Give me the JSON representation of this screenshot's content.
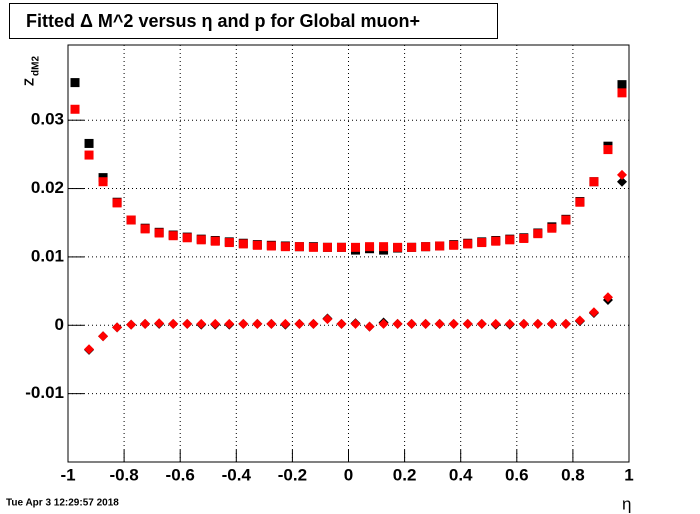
{
  "chart_data": {
    "type": "scatter",
    "title": "Fitted Δ M^2 versus η and p for Global muon+",
    "x_label": "η",
    "y_label": "Z",
    "y_label_sub": "dM2",
    "footer": "Tue Apr  3 12:29:57 2018",
    "x": [
      -0.975,
      -0.925,
      -0.875,
      -0.825,
      -0.775,
      -0.725,
      -0.675,
      -0.625,
      -0.575,
      -0.525,
      -0.475,
      -0.425,
      -0.375,
      -0.325,
      -0.275,
      -0.225,
      -0.175,
      -0.125,
      -0.075,
      -0.025,
      0.025,
      0.075,
      0.125,
      0.175,
      0.225,
      0.275,
      0.325,
      0.375,
      0.425,
      0.475,
      0.525,
      0.575,
      0.625,
      0.675,
      0.725,
      0.775,
      0.825,
      0.875,
      0.925,
      0.975
    ],
    "series": [
      {
        "marker": "square",
        "color": "#000000",
        "values": [
          0.0355,
          0.0266,
          0.0216,
          0.018,
          0.0154,
          0.0142,
          0.0136,
          0.0132,
          0.0129,
          0.0126,
          0.0124,
          0.0122,
          0.012,
          0.0118,
          0.0117,
          0.0116,
          0.0115,
          0.0115,
          0.0114,
          0.0114,
          0.011,
          0.0112,
          0.011,
          0.0113,
          0.0114,
          0.0115,
          0.0116,
          0.0118,
          0.012,
          0.0122,
          0.0124,
          0.0126,
          0.0128,
          0.0135,
          0.0144,
          0.0155,
          0.0181,
          0.021,
          0.0262,
          0.0352
        ]
      },
      {
        "marker": "square",
        "color": "#ff0000",
        "values": [
          0.0316,
          0.0249,
          0.021,
          0.0179,
          0.0154,
          0.0141,
          0.0135,
          0.0131,
          0.0128,
          0.0125,
          0.0123,
          0.0121,
          0.0119,
          0.0117,
          0.0116,
          0.0115,
          0.0115,
          0.0114,
          0.0114,
          0.0114,
          0.0114,
          0.0115,
          0.0115,
          0.0114,
          0.0114,
          0.0115,
          0.0116,
          0.0117,
          0.0119,
          0.0121,
          0.0123,
          0.0125,
          0.0127,
          0.0134,
          0.0142,
          0.0154,
          0.018,
          0.021,
          0.0257,
          0.034
        ]
      },
      {
        "marker": "diamond",
        "color": "#000000",
        "values": [
          null,
          -0.0036,
          -0.0016,
          -0.0003,
          0.0001,
          0.0002,
          0.0002,
          0.0002,
          0.0002,
          0.0001,
          0.0001,
          0.0001,
          0.0002,
          0.0002,
          0.0002,
          0.0001,
          0.0002,
          0.0002,
          0.001,
          0.0002,
          0.0003,
          -0.0002,
          0.0004,
          0.0002,
          0.0002,
          0.0002,
          0.0002,
          0.0002,
          0.0002,
          0.0002,
          0.0001,
          0.0001,
          0.0002,
          0.0002,
          0.0002,
          0.0002,
          0.0006,
          0.0018,
          0.0037,
          0.021
        ]
      },
      {
        "marker": "diamond",
        "color": "#ff0000",
        "values": [
          null,
          -0.0035,
          -0.0016,
          -0.0003,
          0.0001,
          0.0002,
          0.0003,
          0.0002,
          0.0002,
          0.0002,
          0.0002,
          0.0002,
          0.0002,
          0.0002,
          0.0002,
          0.0002,
          0.0002,
          0.0002,
          0.0009,
          0.0002,
          0.0002,
          -0.0002,
          0.0002,
          0.0002,
          0.0002,
          0.0002,
          0.0002,
          0.0002,
          0.0002,
          0.0002,
          0.0002,
          0.0002,
          0.0002,
          0.0002,
          0.0002,
          0.0002,
          0.0007,
          0.0019,
          0.0041,
          0.022
        ]
      }
    ],
    "xlim": [
      -1,
      1
    ],
    "xticks": [
      -1,
      -0.8,
      -0.6,
      -0.4,
      -0.2,
      0,
      0.2,
      0.4,
      0.6,
      0.8,
      1
    ],
    "ylim": [
      -0.02,
      0.041
    ],
    "yticks": [
      -0.01,
      0,
      0.01,
      0.02,
      0.03
    ],
    "grid": true
  }
}
